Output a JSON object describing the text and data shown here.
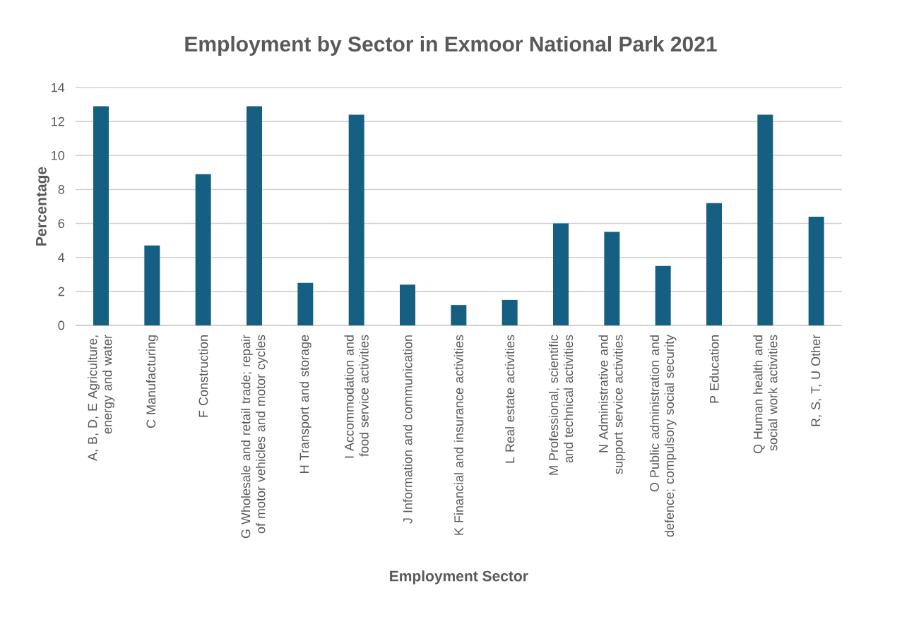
{
  "chart_data": {
    "type": "bar",
    "title": "Employment by Sector in Exmoor National Park 2021",
    "xlabel": "Employment Sector",
    "ylabel": "Percentage",
    "categories": [
      "A, B, D, E Agriculture, energy and water",
      "C Manufacturing",
      "F Construction",
      "G Wholesale and retail trade; repair of motor vehicles and motor cycles",
      "H Transport and storage",
      "I Accommodation and food service activities",
      "J Information and communication",
      "K Financial and insurance activities",
      "L Real estate activities",
      "M Professional, scientific and technical activities",
      "N Administrative and support service activities",
      "O Public administration and defence; compulsory social security",
      "P Education",
      "Q Human health and social work activities",
      "R, S, T, U Other"
    ],
    "values": [
      12.9,
      4.7,
      8.9,
      12.9,
      2.5,
      12.4,
      2.4,
      1.2,
      1.5,
      6.0,
      5.5,
      3.5,
      7.2,
      12.4,
      6.4
    ],
    "color": "#156082",
    "ylim": [
      0,
      14
    ],
    "yticks": [
      0,
      2,
      4,
      6,
      8,
      10,
      12,
      14
    ],
    "grid": "y"
  }
}
